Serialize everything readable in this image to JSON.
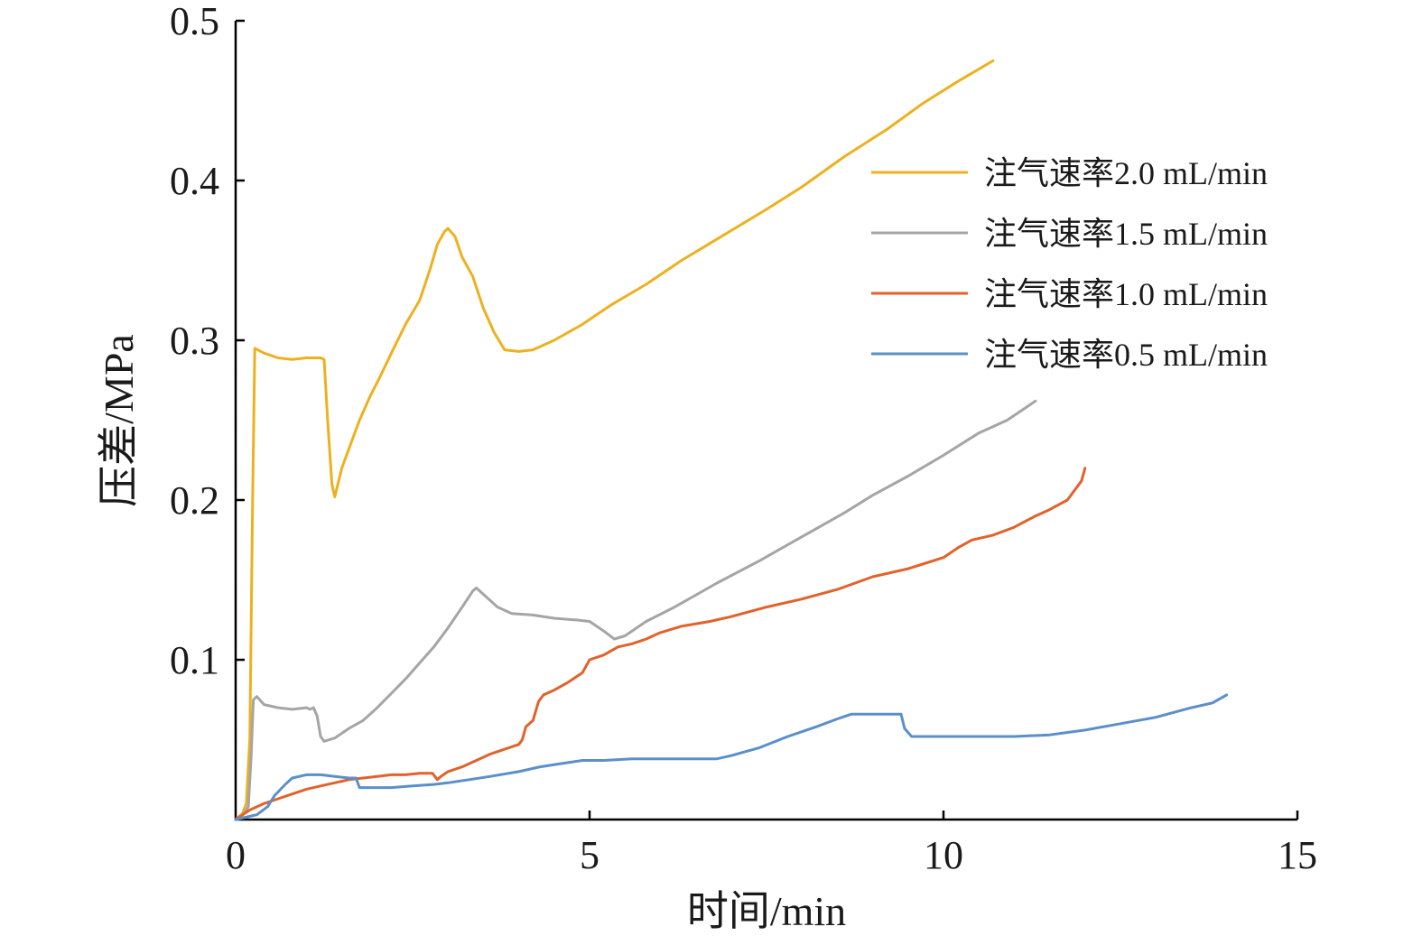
{
  "chart_data": {
    "type": "line",
    "title": "",
    "xlabel": "时间/min",
    "ylabel": "压差/MPa",
    "xlim": [
      0,
      15
    ],
    "ylim": [
      0,
      0.5
    ],
    "xticks": [
      0,
      5,
      10,
      15
    ],
    "xtick_labels": [
      "0",
      "5",
      "10",
      "15"
    ],
    "yticks": [
      0.1,
      0.2,
      0.3,
      0.4,
      0.5
    ],
    "ytick_labels": [
      "0.1",
      "0.2",
      "0.3",
      "0.4",
      "0.5"
    ],
    "grid": false,
    "legend_position": "right, upper-middle",
    "series": [
      {
        "name": "注气速率2.0 mL/min",
        "color": "#EDB120",
        "points": [
          [
            0,
            0
          ],
          [
            0.1,
            0.004
          ],
          [
            0.15,
            0.01
          ],
          [
            0.2,
            0.05
          ],
          [
            0.24,
            0.2
          ],
          [
            0.27,
            0.295
          ],
          [
            0.4,
            0.292
          ],
          [
            0.6,
            0.289
          ],
          [
            0.8,
            0.288
          ],
          [
            1.0,
            0.289
          ],
          [
            1.2,
            0.289
          ],
          [
            1.25,
            0.288
          ],
          [
            1.3,
            0.25
          ],
          [
            1.36,
            0.21
          ],
          [
            1.4,
            0.202
          ],
          [
            1.5,
            0.22
          ],
          [
            1.6,
            0.232
          ],
          [
            1.75,
            0.25
          ],
          [
            1.9,
            0.265
          ],
          [
            2.05,
            0.278
          ],
          [
            2.2,
            0.292
          ],
          [
            2.4,
            0.31
          ],
          [
            2.6,
            0.325
          ],
          [
            2.75,
            0.345
          ],
          [
            2.85,
            0.36
          ],
          [
            2.95,
            0.368
          ],
          [
            3.0,
            0.37
          ],
          [
            3.1,
            0.365
          ],
          [
            3.2,
            0.352
          ],
          [
            3.35,
            0.34
          ],
          [
            3.5,
            0.32
          ],
          [
            3.65,
            0.305
          ],
          [
            3.8,
            0.294
          ],
          [
            4.0,
            0.293
          ],
          [
            4.2,
            0.294
          ],
          [
            4.5,
            0.3
          ],
          [
            4.9,
            0.31
          ],
          [
            5.3,
            0.322
          ],
          [
            5.8,
            0.335
          ],
          [
            6.3,
            0.35
          ],
          [
            6.9,
            0.366
          ],
          [
            7.5,
            0.382
          ],
          [
            8.0,
            0.396
          ],
          [
            8.6,
            0.415
          ],
          [
            9.2,
            0.432
          ],
          [
            9.7,
            0.448
          ],
          [
            10.2,
            0.462
          ],
          [
            10.7,
            0.475
          ]
        ]
      },
      {
        "name": "注气速率1.5 mL/min",
        "color": "#A5A5A5",
        "points": [
          [
            0,
            0
          ],
          [
            0.1,
            0.003
          ],
          [
            0.18,
            0.008
          ],
          [
            0.22,
            0.04
          ],
          [
            0.25,
            0.075
          ],
          [
            0.3,
            0.077
          ],
          [
            0.4,
            0.072
          ],
          [
            0.6,
            0.07
          ],
          [
            0.8,
            0.069
          ],
          [
            1.0,
            0.07
          ],
          [
            1.05,
            0.069
          ],
          [
            1.1,
            0.07
          ],
          [
            1.15,
            0.065
          ],
          [
            1.2,
            0.052
          ],
          [
            1.25,
            0.049
          ],
          [
            1.4,
            0.051
          ],
          [
            1.6,
            0.057
          ],
          [
            1.8,
            0.062
          ],
          [
            2.0,
            0.07
          ],
          [
            2.2,
            0.079
          ],
          [
            2.4,
            0.088
          ],
          [
            2.6,
            0.098
          ],
          [
            2.8,
            0.108
          ],
          [
            3.0,
            0.12
          ],
          [
            3.2,
            0.133
          ],
          [
            3.35,
            0.143
          ],
          [
            3.4,
            0.145
          ],
          [
            3.55,
            0.139
          ],
          [
            3.7,
            0.133
          ],
          [
            3.9,
            0.129
          ],
          [
            4.2,
            0.128
          ],
          [
            4.5,
            0.126
          ],
          [
            4.8,
            0.125
          ],
          [
            5.0,
            0.124
          ],
          [
            5.2,
            0.118
          ],
          [
            5.35,
            0.113
          ],
          [
            5.5,
            0.115
          ],
          [
            5.8,
            0.124
          ],
          [
            6.2,
            0.133
          ],
          [
            6.8,
            0.148
          ],
          [
            7.4,
            0.162
          ],
          [
            8.0,
            0.177
          ],
          [
            8.6,
            0.192
          ],
          [
            9.0,
            0.203
          ],
          [
            9.5,
            0.215
          ],
          [
            10.0,
            0.228
          ],
          [
            10.5,
            0.242
          ],
          [
            10.9,
            0.25
          ],
          [
            11.3,
            0.262
          ]
        ]
      },
      {
        "name": "注气速率1.0 mL/min",
        "color": "#E2622C",
        "points": [
          [
            0,
            0
          ],
          [
            0.2,
            0.006
          ],
          [
            0.4,
            0.01
          ],
          [
            0.6,
            0.013
          ],
          [
            0.8,
            0.016
          ],
          [
            1.0,
            0.019
          ],
          [
            1.2,
            0.021
          ],
          [
            1.4,
            0.023
          ],
          [
            1.6,
            0.025
          ],
          [
            1.8,
            0.026
          ],
          [
            2.0,
            0.027
          ],
          [
            2.2,
            0.028
          ],
          [
            2.4,
            0.028
          ],
          [
            2.6,
            0.029
          ],
          [
            2.78,
            0.029
          ],
          [
            2.85,
            0.025
          ],
          [
            2.9,
            0.027
          ],
          [
            3.0,
            0.03
          ],
          [
            3.2,
            0.033
          ],
          [
            3.4,
            0.037
          ],
          [
            3.6,
            0.041
          ],
          [
            3.8,
            0.044
          ],
          [
            4.0,
            0.047
          ],
          [
            4.05,
            0.05
          ],
          [
            4.1,
            0.058
          ],
          [
            4.2,
            0.062
          ],
          [
            4.28,
            0.074
          ],
          [
            4.35,
            0.078
          ],
          [
            4.5,
            0.081
          ],
          [
            4.7,
            0.086
          ],
          [
            4.9,
            0.092
          ],
          [
            5.0,
            0.1
          ],
          [
            5.2,
            0.103
          ],
          [
            5.4,
            0.108
          ],
          [
            5.6,
            0.11
          ],
          [
            5.8,
            0.113
          ],
          [
            6.0,
            0.117
          ],
          [
            6.3,
            0.121
          ],
          [
            6.7,
            0.124
          ],
          [
            7.0,
            0.127
          ],
          [
            7.5,
            0.133
          ],
          [
            8.0,
            0.138
          ],
          [
            8.5,
            0.144
          ],
          [
            9.0,
            0.152
          ],
          [
            9.5,
            0.157
          ],
          [
            10.0,
            0.164
          ],
          [
            10.2,
            0.17
          ],
          [
            10.4,
            0.175
          ],
          [
            10.7,
            0.178
          ],
          [
            11.0,
            0.183
          ],
          [
            11.3,
            0.19
          ],
          [
            11.5,
            0.194
          ],
          [
            11.75,
            0.2
          ],
          [
            11.95,
            0.212
          ],
          [
            12.0,
            0.22
          ]
        ]
      },
      {
        "name": "注气速率0.5 mL/min",
        "color": "#5B8FC9",
        "points": [
          [
            0,
            0
          ],
          [
            0.3,
            0.003
          ],
          [
            0.45,
            0.008
          ],
          [
            0.55,
            0.015
          ],
          [
            0.7,
            0.022
          ],
          [
            0.8,
            0.026
          ],
          [
            1.0,
            0.028
          ],
          [
            1.2,
            0.028
          ],
          [
            1.4,
            0.027
          ],
          [
            1.6,
            0.026
          ],
          [
            1.7,
            0.026
          ],
          [
            1.75,
            0.02
          ],
          [
            1.85,
            0.02
          ],
          [
            2.2,
            0.02
          ],
          [
            2.5,
            0.021
          ],
          [
            2.8,
            0.022
          ],
          [
            3.0,
            0.023
          ],
          [
            3.3,
            0.025
          ],
          [
            3.6,
            0.027
          ],
          [
            4.0,
            0.03
          ],
          [
            4.3,
            0.033
          ],
          [
            4.6,
            0.035
          ],
          [
            4.9,
            0.037
          ],
          [
            5.2,
            0.037
          ],
          [
            5.6,
            0.038
          ],
          [
            6.0,
            0.038
          ],
          [
            6.4,
            0.038
          ],
          [
            6.8,
            0.038
          ],
          [
            7.0,
            0.04
          ],
          [
            7.4,
            0.045
          ],
          [
            7.8,
            0.052
          ],
          [
            8.2,
            0.058
          ],
          [
            8.5,
            0.063
          ],
          [
            8.7,
            0.066
          ],
          [
            9.0,
            0.066
          ],
          [
            9.4,
            0.066
          ],
          [
            9.45,
            0.057
          ],
          [
            9.55,
            0.052
          ],
          [
            10.0,
            0.052
          ],
          [
            10.5,
            0.052
          ],
          [
            11.0,
            0.052
          ],
          [
            11.5,
            0.053
          ],
          [
            12.0,
            0.056
          ],
          [
            12.5,
            0.06
          ],
          [
            13.0,
            0.064
          ],
          [
            13.5,
            0.07
          ],
          [
            13.8,
            0.073
          ],
          [
            14.0,
            0.078
          ]
        ]
      }
    ]
  }
}
